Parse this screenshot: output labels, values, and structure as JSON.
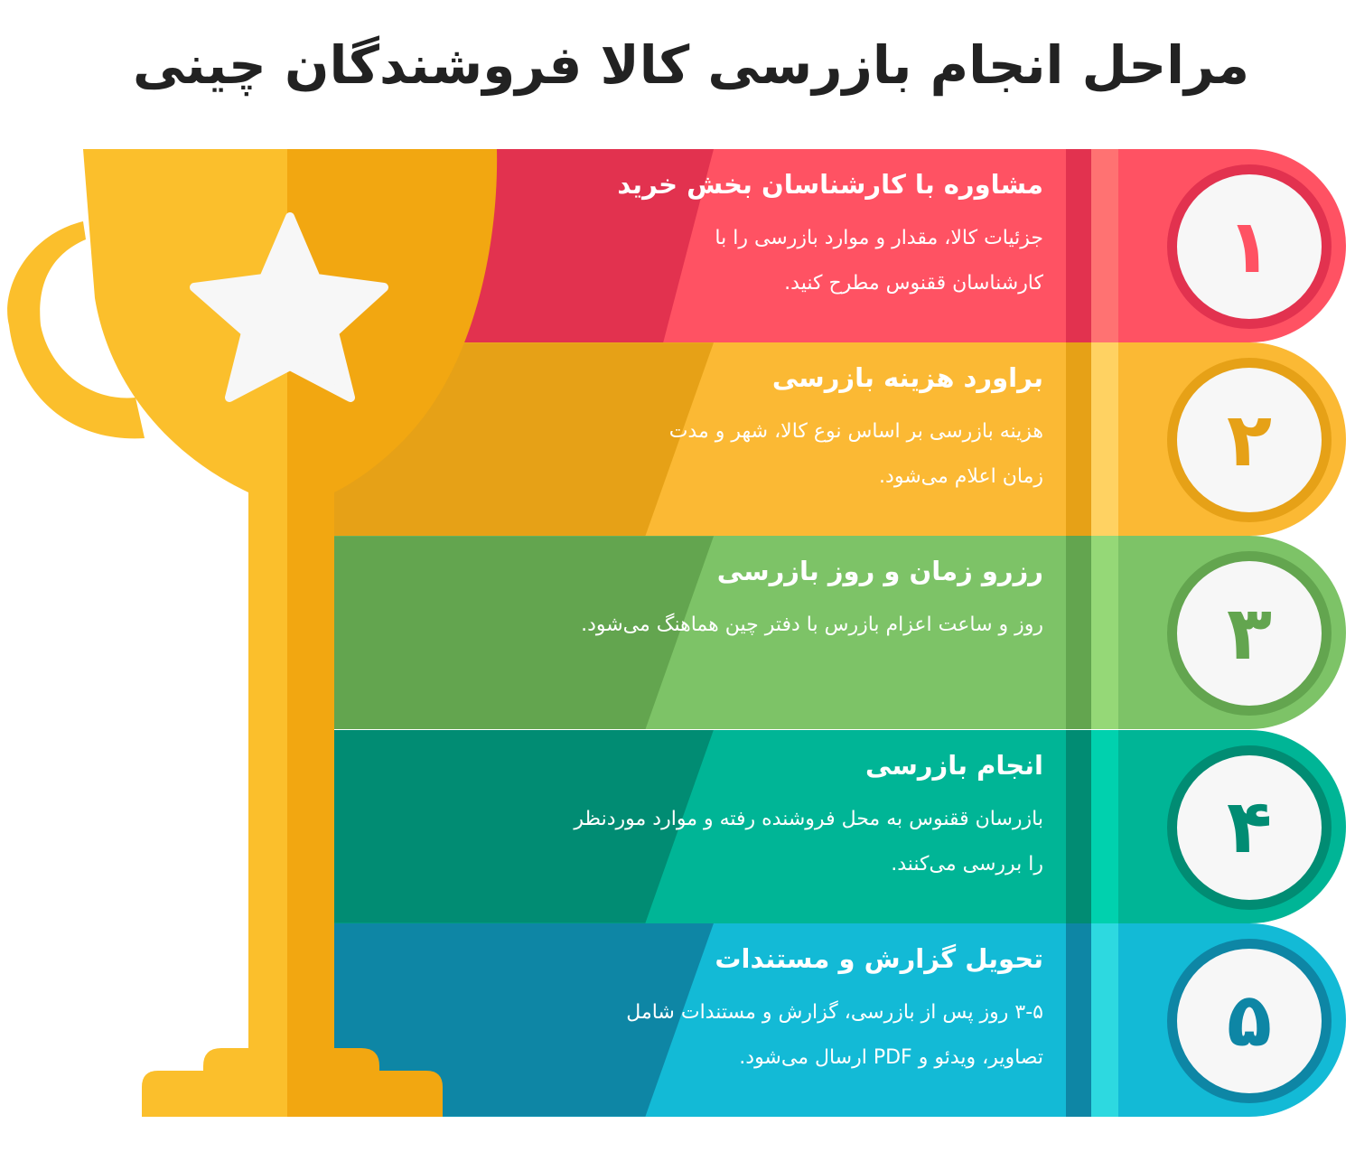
{
  "title": "مراحل انجام بازرسی کالا فروشندگان چینی",
  "steps": [
    {
      "number": "۱",
      "title": "مشاوره با کارشناسان بخش خرید",
      "desc": [
        "جزئیات کالا، مقدار و موارد بازرسی را با",
        "کارشناسان ققنوس مطرح کنید."
      ],
      "colors": {
        "dark": "#E2324F",
        "main": "#FF5263",
        "light": "#FF7272"
      }
    },
    {
      "number": "۲",
      "title": "براورد هزینه بازرسی",
      "desc": [
        "هزینه بازرسی بر اساس نوع کالا، شهر و مدت",
        "زمان اعلام می‌شود."
      ],
      "colors": {
        "dark": "#E6A117",
        "main": "#FBB934",
        "light": "#FFD262"
      }
    },
    {
      "number": "۳",
      "title": "رزرو زمان و روز بازرسی",
      "desc": [
        "روز و ساعت اعزام بازرس با دفتر چین هماهنگ می‌شود."
      ],
      "colors": {
        "dark": "#63A54F",
        "main": "#7DC367",
        "light": "#95D877"
      }
    },
    {
      "number": "۴",
      "title": "انجام بازرسی",
      "desc": [
        "بازرسان ققنوس به محل فروشنده رفته و موارد موردنظر",
        "را بررسی می‌کنند."
      ],
      "colors": {
        "dark": "#018C73",
        "main": "#00B596",
        "light": "#00D1AE"
      }
    },
    {
      "number": "۵",
      "title": "تحویل گزارش و مستندات",
      "desc": [
        "۳-۵ روز پس از بازرسی، گزارش و مستندات شامل",
        "تصاویر، ویدئو و PDF ارسال می‌شود."
      ],
      "colors": {
        "dark": "#0E86A5",
        "main": "#13BAD6",
        "light": "#2DD9E0"
      }
    }
  ],
  "trophy": {
    "icon": "trophy-star-icon",
    "left": "#FBBF2C",
    "right": "#F2A711"
  }
}
